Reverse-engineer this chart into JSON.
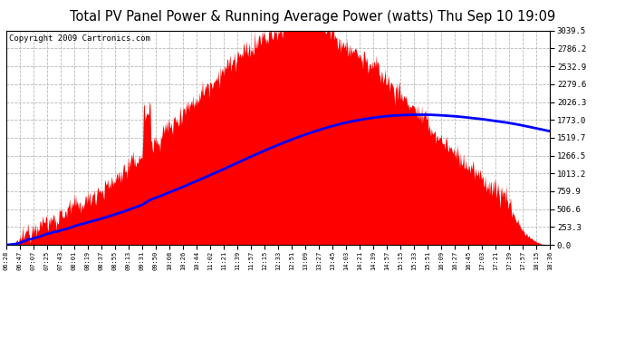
{
  "title": "Total PV Panel Power & Running Average Power (watts) Thu Sep 10 19:09",
  "copyright": "Copyright 2009 Cartronics.com",
  "y_max": 3039.5,
  "y_min": 0.0,
  "y_ticks": [
    0.0,
    253.3,
    506.6,
    759.9,
    1013.2,
    1266.5,
    1519.7,
    1773.0,
    2026.3,
    2279.6,
    2532.9,
    2786.2,
    3039.5
  ],
  "x_labels": [
    "06:28",
    "06:47",
    "07:07",
    "07:25",
    "07:43",
    "08:01",
    "08:19",
    "08:37",
    "08:55",
    "09:13",
    "09:31",
    "09:50",
    "10:08",
    "10:26",
    "10:44",
    "11:02",
    "11:21",
    "11:39",
    "11:57",
    "12:15",
    "12:33",
    "12:51",
    "13:09",
    "13:27",
    "13:45",
    "14:03",
    "14:21",
    "14:39",
    "14:57",
    "15:15",
    "15:33",
    "15:51",
    "16:09",
    "16:27",
    "16:45",
    "17:03",
    "17:21",
    "17:39",
    "17:57",
    "18:15",
    "18:36"
  ],
  "background_color": "#ffffff",
  "plot_bg_color": "#ffffff",
  "grid_color": "#b0b0b0",
  "fill_color": "#ff0000",
  "line_color": "#0000ff",
  "title_color": "#000000",
  "border_color": "#000000",
  "title_fontsize": 10.5,
  "copyright_fontsize": 6.5,
  "tick_fontsize": 6.5,
  "line_width": 2.0
}
